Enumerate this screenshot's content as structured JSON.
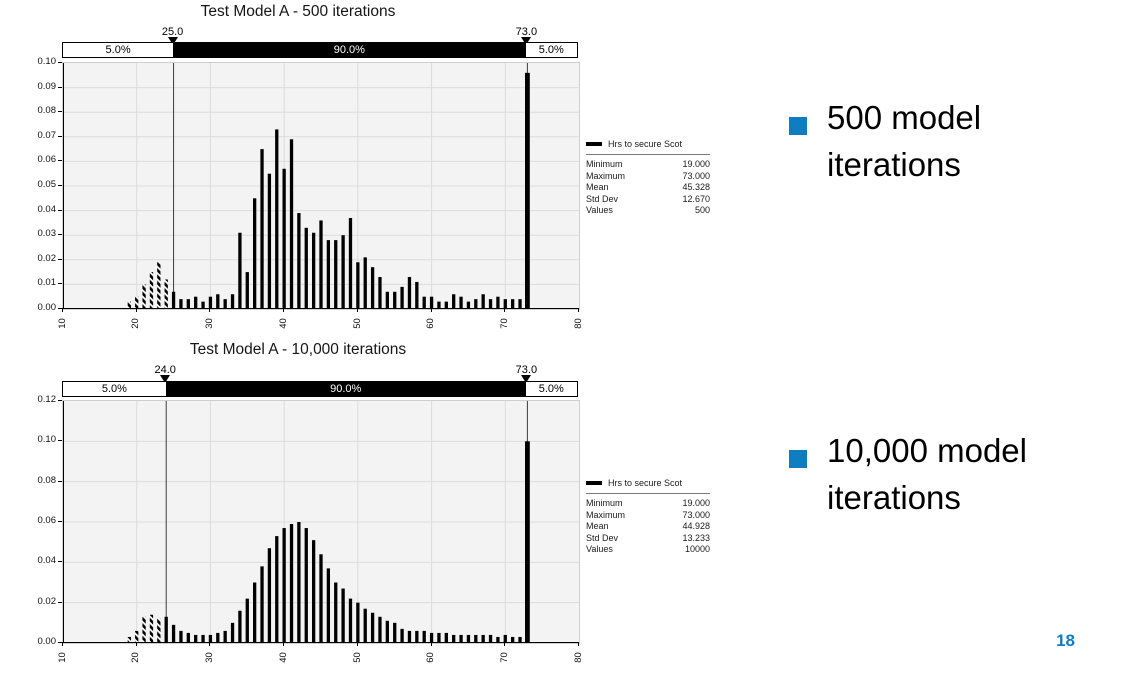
{
  "page": {
    "number": "18",
    "accent_color": "#0f7dc2"
  },
  "bullets": [
    {
      "label": "500 model iterations"
    },
    {
      "label": "10,000 model iterations"
    }
  ],
  "charts": [
    {
      "title": "Test Model A - 500 iterations",
      "delimiter_bar": {
        "left_label": "5.0%",
        "mid_label": "90.0%",
        "right_label": "5.0%",
        "left_value_label": "25.0",
        "right_value_label": "73.0"
      },
      "legend": {
        "series_label": "Hrs to secure Scot"
      },
      "stats": [
        {
          "label": "Minimum",
          "value": "19.000"
        },
        {
          "label": "Maximum",
          "value": "73.000"
        },
        {
          "label": "Mean",
          "value": "45.328"
        },
        {
          "label": "Std Dev",
          "value": "12.670"
        },
        {
          "label": "Values",
          "value": "500"
        }
      ],
      "chart_data": {
        "type": "bar",
        "title": "Test Model A - 500 iterations",
        "xlabel": "",
        "ylabel": "",
        "xlim": [
          10,
          80
        ],
        "ylim": [
          0,
          0.1
        ],
        "xticks": [
          10,
          20,
          30,
          40,
          50,
          60,
          70,
          80
        ],
        "yticks": [
          0,
          0.01,
          0.02,
          0.03,
          0.04,
          0.05,
          0.06,
          0.07,
          0.08,
          0.09,
          0.1
        ],
        "grid": true,
        "bar_color": "#000000",
        "delimiters": [
          25.0,
          73.0
        ],
        "hatched_below": 25.0,
        "x": [
          19,
          20,
          21,
          22,
          23,
          24,
          25,
          26,
          27,
          28,
          29,
          30,
          31,
          32,
          33,
          34,
          35,
          36,
          37,
          38,
          39,
          40,
          41,
          42,
          43,
          44,
          45,
          46,
          47,
          48,
          49,
          50,
          51,
          52,
          53,
          54,
          55,
          56,
          57,
          58,
          59,
          60,
          61,
          62,
          63,
          64,
          65,
          66,
          67,
          68,
          69,
          70,
          71,
          72,
          73
        ],
        "values": [
          0.003,
          0.005,
          0.01,
          0.015,
          0.019,
          0.012,
          0.007,
          0.004,
          0.004,
          0.005,
          0.003,
          0.005,
          0.006,
          0.004,
          0.006,
          0.031,
          0.015,
          0.045,
          0.065,
          0.055,
          0.073,
          0.057,
          0.069,
          0.039,
          0.033,
          0.031,
          0.036,
          0.028,
          0.028,
          0.03,
          0.037,
          0.019,
          0.021,
          0.017,
          0.013,
          0.007,
          0.007,
          0.009,
          0.013,
          0.011,
          0.005,
          0.005,
          0.003,
          0.003,
          0.006,
          0.005,
          0.003,
          0.004,
          0.006,
          0.004,
          0.005,
          0.004,
          0.004,
          0.004,
          0.096
        ]
      }
    },
    {
      "title": "Test Model A - 10,000 iterations",
      "delimiter_bar": {
        "left_label": "5.0%",
        "mid_label": "90.0%",
        "right_label": "5.0%",
        "left_value_label": "24.0",
        "right_value_label": "73.0"
      },
      "legend": {
        "series_label": "Hrs to secure Scot"
      },
      "stats": [
        {
          "label": "Minimum",
          "value": "19.000"
        },
        {
          "label": "Maximum",
          "value": "73.000"
        },
        {
          "label": "Mean",
          "value": "44.928"
        },
        {
          "label": "Std Dev",
          "value": "13.233"
        },
        {
          "label": "Values",
          "value": "10000"
        }
      ],
      "chart_data": {
        "type": "bar",
        "title": "Test Model A - 10,000 iterations",
        "xlabel": "",
        "ylabel": "",
        "xlim": [
          10,
          80
        ],
        "ylim": [
          0,
          0.12
        ],
        "xticks": [
          10,
          20,
          30,
          40,
          50,
          60,
          70,
          80
        ],
        "yticks": [
          0,
          0.02,
          0.04,
          0.06,
          0.08,
          0.1,
          0.12
        ],
        "grid": true,
        "bar_color": "#000000",
        "delimiters": [
          24.0,
          73.0
        ],
        "hatched_below": 24.0,
        "x": [
          19,
          20,
          21,
          22,
          23,
          24,
          25,
          26,
          27,
          28,
          29,
          30,
          31,
          32,
          33,
          34,
          35,
          36,
          37,
          38,
          39,
          40,
          41,
          42,
          43,
          44,
          45,
          46,
          47,
          48,
          49,
          50,
          51,
          52,
          53,
          54,
          55,
          56,
          57,
          58,
          59,
          60,
          61,
          62,
          63,
          64,
          65,
          66,
          67,
          68,
          69,
          70,
          71,
          72,
          73
        ],
        "values": [
          0.003,
          0.006,
          0.013,
          0.014,
          0.012,
          0.013,
          0.009,
          0.006,
          0.005,
          0.004,
          0.004,
          0.004,
          0.005,
          0.006,
          0.01,
          0.016,
          0.022,
          0.03,
          0.038,
          0.047,
          0.053,
          0.057,
          0.059,
          0.06,
          0.057,
          0.051,
          0.044,
          0.037,
          0.03,
          0.027,
          0.022,
          0.02,
          0.017,
          0.015,
          0.013,
          0.011,
          0.01,
          0.007,
          0.006,
          0.006,
          0.006,
          0.005,
          0.005,
          0.005,
          0.004,
          0.004,
          0.004,
          0.004,
          0.004,
          0.004,
          0.003,
          0.004,
          0.003,
          0.003,
          0.1
        ]
      }
    }
  ]
}
